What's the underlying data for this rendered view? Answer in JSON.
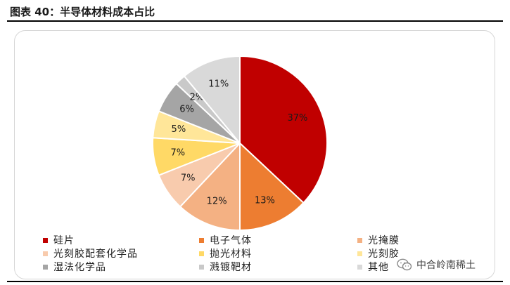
{
  "figure": {
    "title": "图表 40：半导体材料成本占比"
  },
  "chart_data": {
    "type": "pie",
    "title": "",
    "start_angle_deg": 0,
    "direction": "clockwise",
    "slices": [
      {
        "name": "硅片",
        "value": 37,
        "label": "37%",
        "color": "#c00000"
      },
      {
        "name": "电子气体",
        "value": 13,
        "label": "13%",
        "color": "#ed7d31"
      },
      {
        "name": "光掩膜",
        "value": 12,
        "label": "12%",
        "color": "#f4b183"
      },
      {
        "name": "光刻胶配套化学品",
        "value": 7,
        "label": "7%",
        "color": "#f8cbad"
      },
      {
        "name": "抛光材料",
        "value": 7,
        "label": "7%",
        "color": "#ffd966"
      },
      {
        "name": "光刻胶",
        "value": 5,
        "label": "5%",
        "color": "#ffe699"
      },
      {
        "name": "湿法化学品",
        "value": 6,
        "label": "6%",
        "color": "#a5a5a5"
      },
      {
        "name": "溅镀靶材",
        "value": 2,
        "label": "2%",
        "color": "#c9c9c9"
      },
      {
        "name": "其他",
        "value": 11,
        "label": "11%",
        "color": "#d9d9d9"
      }
    ],
    "legend": {
      "placement": "bottom",
      "columns": 3
    }
  },
  "watermark": {
    "text": "中合岭南稀土",
    "icon": "wechat-icon"
  }
}
